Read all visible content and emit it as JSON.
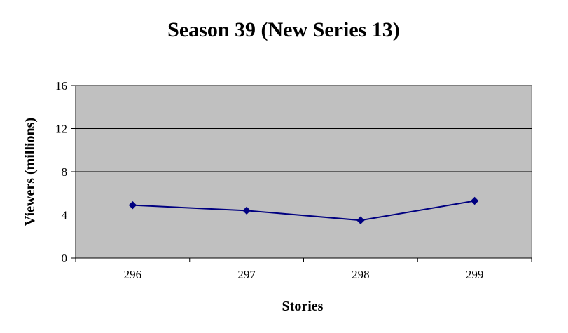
{
  "chart_data": {
    "type": "line",
    "title": "Season 39 (New Series 13)",
    "xlabel": "Stories",
    "ylabel": "Viewers (millions)",
    "categories": [
      "296",
      "297",
      "298",
      "299"
    ],
    "series": [
      {
        "values": [
          4.9,
          4.4,
          3.5,
          5.3
        ],
        "color": "#000080"
      }
    ],
    "ylim": [
      0,
      16
    ],
    "yticks": [
      "0",
      "4",
      "8",
      "12",
      "16"
    ],
    "grid": true,
    "plot_background": "#c0c0c0",
    "legend": "none"
  }
}
